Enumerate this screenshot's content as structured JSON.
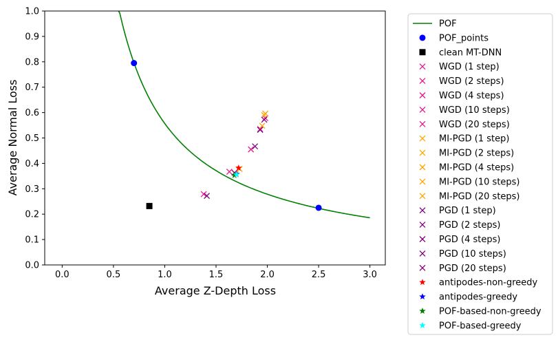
{
  "chart_data": {
    "type": "scatter",
    "xlabel": "Average Z-Depth Loss",
    "ylabel": "Average Normal Loss",
    "xlim": [
      -0.17,
      3.15
    ],
    "ylim": [
      0.0,
      1.0
    ],
    "xticks": [
      0.0,
      0.5,
      1.0,
      1.5,
      2.0,
      2.5,
      3.0
    ],
    "yticks": [
      0.0,
      0.1,
      0.2,
      0.3,
      0.4,
      0.5,
      0.6,
      0.7,
      0.8,
      0.9,
      1.0
    ],
    "xtick_labels": [
      "0.0",
      "0.5",
      "1.0",
      "1.5",
      "2.0",
      "2.5",
      "3.0"
    ],
    "ytick_labels": [
      "0.0",
      "0.1",
      "0.2",
      "0.3",
      "0.4",
      "0.5",
      "0.6",
      "0.7",
      "0.8",
      "0.9",
      "1.0"
    ],
    "grid": false,
    "legend_position": "outside-right",
    "series": [
      {
        "name": "POF",
        "kind": "line",
        "color": "#008000",
        "x_range": [
          0.55,
          3.0
        ],
        "formula": "y = 0.557 / x"
      },
      {
        "name": "POF_points",
        "kind": "point",
        "marker": "circle",
        "color": "#0000ff",
        "x": [
          0.7,
          2.5
        ],
        "y": [
          0.795,
          0.225
        ]
      },
      {
        "name": "clean MT-DNN",
        "kind": "point",
        "marker": "square",
        "color": "#000000",
        "x": [
          0.85
        ],
        "y": [
          0.232
        ]
      },
      {
        "name": "WGD (1 step)",
        "kind": "point",
        "marker": "x",
        "color": "#e6198c",
        "x": [
          1.38
        ],
        "y": [
          0.279
        ]
      },
      {
        "name": "WGD (2 steps)",
        "kind": "point",
        "marker": "x",
        "color": "#e6198c",
        "x": [
          1.63
        ],
        "y": [
          0.367
        ]
      },
      {
        "name": "WGD (4 steps)",
        "kind": "point",
        "marker": "x",
        "color": "#e6198c",
        "x": [
          1.84
        ],
        "y": [
          0.455
        ]
      },
      {
        "name": "WGD (10 steps)",
        "kind": "point",
        "marker": "x",
        "color": "#e6198c",
        "x": [
          1.93
        ],
        "y": [
          0.535
        ]
      },
      {
        "name": "WGD (20 steps)",
        "kind": "point",
        "marker": "x",
        "color": "#e6198c",
        "x": [
          1.98
        ],
        "y": [
          0.578
        ]
      },
      {
        "name": "MI-PGD (1 step)",
        "kind": "point",
        "marker": "x",
        "color": "#ffa500",
        "x": [
          1.69
        ],
        "y": [
          0.357
        ]
      },
      {
        "name": "MI-PGD (2 steps)",
        "kind": "point",
        "marker": "x",
        "color": "#ffa500",
        "x": [
          1.73
        ],
        "y": [
          0.378
        ]
      },
      {
        "name": "MI-PGD (4 steps)",
        "kind": "point",
        "marker": "x",
        "color": "#ffa500",
        "x": [
          1.95
        ],
        "y": [
          0.548
        ]
      },
      {
        "name": "MI-PGD (10 steps)",
        "kind": "point",
        "marker": "x",
        "color": "#ffa500",
        "x": [
          1.97
        ],
        "y": [
          0.59
        ]
      },
      {
        "name": "MI-PGD (20 steps)",
        "kind": "point",
        "marker": "x",
        "color": "#ffa500",
        "x": [
          1.98
        ],
        "y": [
          0.596
        ]
      },
      {
        "name": "PGD (1 step)",
        "kind": "point",
        "marker": "x",
        "color": "#800080",
        "x": [
          1.41
        ],
        "y": [
          0.272
        ]
      },
      {
        "name": "PGD (2 steps)",
        "kind": "point",
        "marker": "x",
        "color": "#800080",
        "x": [
          1.68
        ],
        "y": [
          0.363
        ]
      },
      {
        "name": "PGD (4 steps)",
        "kind": "point",
        "marker": "x",
        "color": "#800080",
        "x": [
          1.88
        ],
        "y": [
          0.467
        ]
      },
      {
        "name": "PGD (10 steps)",
        "kind": "point",
        "marker": "x",
        "color": "#800080",
        "x": [
          1.93
        ],
        "y": [
          0.532
        ]
      },
      {
        "name": "PGD (20 steps)",
        "kind": "point",
        "marker": "x",
        "color": "#800080",
        "x": [
          1.97
        ],
        "y": [
          0.572
        ]
      },
      {
        "name": "antipodes-non-greedy",
        "kind": "point",
        "marker": "star",
        "color": "#ff0000",
        "x": [
          1.72
        ],
        "y": [
          0.382
        ]
      },
      {
        "name": "antipodes-greedy",
        "kind": "point",
        "marker": "star",
        "color": "#0000ff",
        "x": [
          1.7
        ],
        "y": [
          0.358
        ]
      },
      {
        "name": "POF-based-non-greedy",
        "kind": "point",
        "marker": "star",
        "color": "#008000",
        "x": [
          1.68
        ],
        "y": [
          0.353
        ]
      },
      {
        "name": "POF-based-greedy",
        "kind": "point",
        "marker": "star",
        "color": "#00ffff",
        "x": [
          1.7
        ],
        "y": [
          0.356
        ]
      }
    ]
  }
}
